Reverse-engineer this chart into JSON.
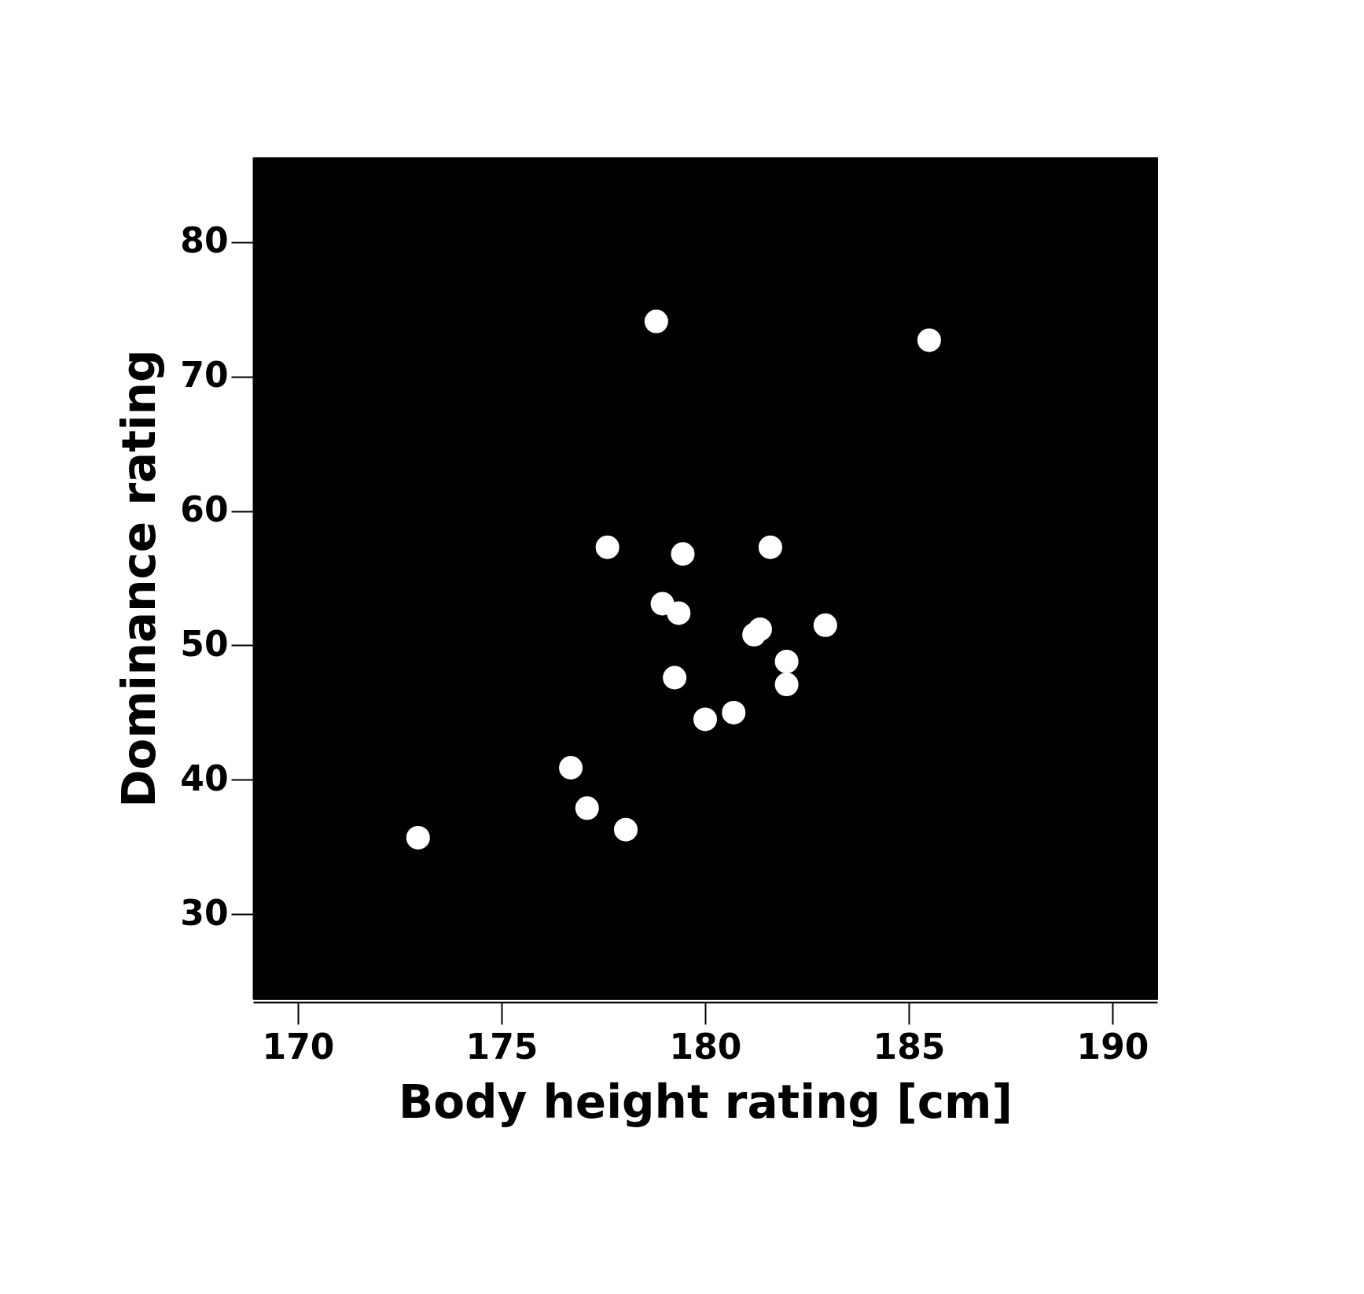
{
  "chart_data": {
    "type": "scatter",
    "xlabel": "Body height rating [cm]",
    "ylabel": "Dominance rating",
    "x": [
      178.8,
      185.5,
      177.6,
      179.45,
      181.6,
      178.95,
      179.35,
      181.2,
      181.35,
      182.95,
      182.0,
      182.0,
      179.25,
      180.0,
      180.7,
      176.7,
      177.1,
      178.05,
      172.95
    ],
    "series": [
      {
        "color": "#ffffff",
        "values": [
          74.1,
          72.7,
          57.3,
          56.8,
          57.3,
          53.1,
          52.4,
          50.8,
          51.2,
          51.5,
          48.8,
          47.1,
          47.6,
          44.5,
          45.0,
          40.9,
          37.9,
          36.3,
          35.7
        ]
      }
    ],
    "xlim": [
      168.9,
      191.1
    ],
    "ylim": [
      23.7,
      86.3
    ],
    "xticks": [
      170,
      175,
      180,
      185,
      190
    ],
    "yticks": [
      30,
      40,
      50,
      60,
      70,
      80
    ],
    "grid": false,
    "marker": "circle"
  }
}
